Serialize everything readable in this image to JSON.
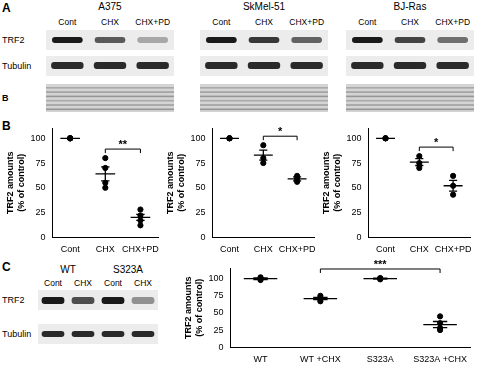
{
  "panel_labels": [
    "A",
    "B",
    "C"
  ],
  "blots_A": {
    "row_labels": [
      "TRF2",
      "Tubulin",
      "B"
    ],
    "lanes": [
      "Cont",
      "CHX",
      "CHX+PD"
    ],
    "blots": [
      {
        "title": "A375"
      },
      {
        "title": "SkMel-51"
      },
      {
        "title": "BJ-Ras"
      }
    ]
  },
  "blot_C": {
    "groups": [
      "WT",
      "S323A"
    ],
    "lanes": [
      "Cont",
      "CHX",
      "Cont",
      "CHX"
    ],
    "row_labels": [
      "TRF2",
      "Tubulin"
    ]
  },
  "chart_data": [
    {
      "type": "scatter",
      "categories": [
        "Cont",
        "CHX",
        "CHX+PD"
      ],
      "points": [
        [
          100,
          100,
          100,
          100
        ],
        [
          80,
          70,
          55,
          50
        ],
        [
          28,
          22,
          17,
          12
        ]
      ],
      "mean": [
        100,
        64,
        20
      ],
      "sem": [
        0,
        7,
        3
      ],
      "ylabel": [
        "TRF2 amounts",
        "(% of control)"
      ],
      "ylim": [
        0,
        110
      ],
      "yticks": [
        0,
        25,
        50,
        75,
        100
      ],
      "color": "#000000",
      "marker": "circle",
      "grid": false,
      "annotations": [
        {
          "from": "CHX",
          "to": "CHX+PD",
          "text": "**"
        }
      ]
    },
    {
      "type": "scatter",
      "categories": [
        "Cont",
        "CHX",
        "CHX+PD"
      ],
      "points": [
        [
          100,
          100,
          100
        ],
        [
          93,
          80,
          75
        ],
        [
          62,
          59,
          56
        ]
      ],
      "mean": [
        100,
        83,
        59
      ],
      "sem": [
        0,
        5,
        2
      ],
      "ylabel": [
        "TRF2 amounts",
        "(% of control)"
      ],
      "ylim": [
        0,
        110
      ],
      "yticks": [
        0,
        25,
        50,
        75,
        100
      ],
      "color": "#000000",
      "marker": "circle",
      "grid": false,
      "annotations": [
        {
          "from": "CHX",
          "to": "CHX+PD",
          "text": "*"
        }
      ]
    },
    {
      "type": "scatter",
      "categories": [
        "Cont",
        "CHX",
        "CHX+PD"
      ],
      "points": [
        [
          100,
          100,
          100
        ],
        [
          82,
          75,
          70
        ],
        [
          62,
          52,
          43
        ]
      ],
      "mean": [
        100,
        76,
        52
      ],
      "sem": [
        0,
        3.5,
        5.5
      ],
      "ylabel": [
        "TRF2 amounts",
        "(% of control)"
      ],
      "ylim": [
        0,
        110
      ],
      "yticks": [
        0,
        25,
        50,
        75,
        100
      ],
      "color": "#000000",
      "marker": "circle",
      "grid": false,
      "annotations": [
        {
          "from": "CHX",
          "to": "CHX+PD",
          "text": "*"
        }
      ]
    },
    {
      "type": "scatter",
      "categories": [
        "WT",
        "WT +CHX",
        "S323A",
        "S323A +CHX"
      ],
      "points": [
        [
          102,
          100,
          98
        ],
        [
          75,
          72,
          70,
          67
        ],
        [
          101,
          100,
          99
        ],
        [
          45,
          35,
          28,
          25
        ]
      ],
      "mean": [
        100,
        71,
        100,
        33
      ],
      "sem": [
        1.2,
        1.7,
        0.6,
        4.5
      ],
      "ylabel": [
        "TRF2 amounts",
        "(% of control)"
      ],
      "ylim": [
        0,
        115
      ],
      "yticks": [
        0,
        25,
        50,
        75,
        100
      ],
      "color": "#000000",
      "marker": "circle",
      "grid": false,
      "annotations": [
        {
          "from": "WT +CHX",
          "to": "S323A +CHX",
          "text": "***"
        }
      ]
    }
  ]
}
